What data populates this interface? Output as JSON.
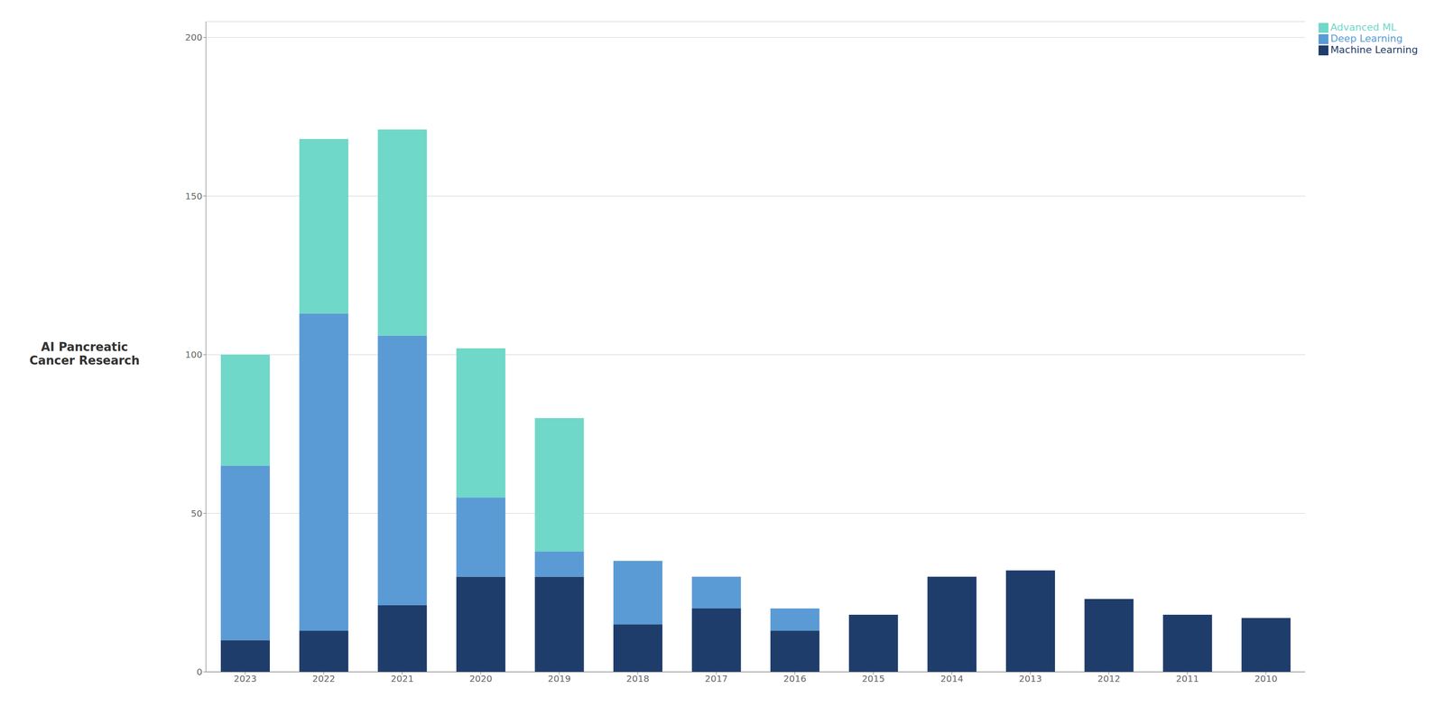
{
  "chart_data": {
    "type": "bar",
    "ylabel": "AI Pancreatic\nCancer Research",
    "categories": [
      "2023",
      "2022",
      "2021",
      "2020",
      "2019",
      "2018",
      "2017",
      "2016",
      "2015",
      "2014",
      "2013",
      "2012",
      "2011",
      "2010"
    ],
    "series": [
      {
        "name": "Machine Learning",
        "color": "#1F3D6B",
        "values": [
          10,
          13,
          21,
          30,
          30,
          15,
          20,
          13,
          18,
          30,
          32,
          23,
          18,
          17
        ]
      },
      {
        "name": "Deep Learning",
        "color": "#5B9BD5",
        "values": [
          55,
          100,
          85,
          25,
          8,
          20,
          10,
          7,
          0,
          0,
          0,
          0,
          0,
          0
        ]
      },
      {
        "name": "Advanced ML",
        "color": "#70D8C8",
        "values": [
          35,
          55,
          65,
          47,
          42,
          0,
          0,
          0,
          0,
          0,
          0,
          0,
          0,
          0
        ]
      }
    ],
    "ylim": [
      0,
      205
    ],
    "yticks": [
      0,
      50,
      100,
      150,
      200
    ],
    "grid": true,
    "stacked": true,
    "legend": "upper right"
  }
}
